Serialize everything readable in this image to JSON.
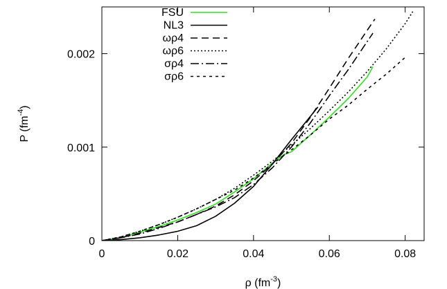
{
  "chart_data": {
    "type": "line",
    "xlabel": "ρ (fm",
    "xlabel_sup": "-3",
    "xlabel_tail": ")",
    "ylabel": "P (fm",
    "ylabel_sup": "-4",
    "ylabel_tail": ")",
    "xlim": [
      0,
      0.085
    ],
    "ylim": [
      0,
      0.0025
    ],
    "xticks": [
      {
        "value": 0,
        "label": "0"
      },
      {
        "value": 0.02,
        "label": "0.02"
      },
      {
        "value": 0.04,
        "label": "0.04"
      },
      {
        "value": 0.06,
        "label": "0.06"
      },
      {
        "value": 0.08,
        "label": "0.08"
      }
    ],
    "yticks": [
      {
        "value": 0,
        "label": "0"
      },
      {
        "value": 0.001,
        "label": "0.001"
      },
      {
        "value": 0.002,
        "label": "0.002"
      }
    ],
    "grid": false,
    "legend_position": "top-left",
    "series": [
      {
        "name": "FSU",
        "color": "#33dd22",
        "dash": "solid",
        "x": [
          0,
          0.005,
          0.01,
          0.015,
          0.02,
          0.025,
          0.03,
          0.035,
          0.04,
          0.045,
          0.048,
          0.05,
          0.055,
          0.06,
          0.065,
          0.07,
          0.0715
        ],
        "y": [
          0,
          3e-05,
          9e-05,
          0.00015,
          0.00022,
          0.0003,
          0.00039,
          0.00052,
          0.00066,
          0.00083,
          0.00092,
          0.00095,
          0.00113,
          0.00132,
          0.00152,
          0.00175,
          0.00186
        ]
      },
      {
        "name": "NL3",
        "color": "#000000",
        "dash": "solid",
        "x": [
          0,
          0.005,
          0.01,
          0.015,
          0.02,
          0.025,
          0.03,
          0.035,
          0.04,
          0.045,
          0.05,
          0.055,
          0.057
        ],
        "y": [
          0,
          1e-05,
          3e-05,
          6e-05,
          0.0001,
          0.00016,
          0.00026,
          0.0004,
          0.00058,
          0.00082,
          0.00108,
          0.00133,
          0.00143
        ]
      },
      {
        "name": "ωρ4",
        "color": "#000000",
        "dash": "10,6",
        "x": [
          0,
          0.005,
          0.01,
          0.015,
          0.02,
          0.025,
          0.03,
          0.035,
          0.04,
          0.045,
          0.05,
          0.055,
          0.06,
          0.065,
          0.07,
          0.072
        ],
        "y": [
          0,
          3e-05,
          8e-05,
          0.00014,
          0.0002,
          0.00028,
          0.00037,
          0.00049,
          0.00064,
          0.00082,
          0.00104,
          0.00132,
          0.00163,
          0.00195,
          0.00225,
          0.00237
        ]
      },
      {
        "name": "ωρ6",
        "color": "#000000",
        "dash": "2,3",
        "x": [
          0,
          0.005,
          0.01,
          0.015,
          0.02,
          0.025,
          0.03,
          0.035,
          0.04,
          0.045,
          0.05,
          0.055,
          0.06,
          0.065,
          0.07,
          0.075,
          0.08,
          0.082
        ],
        "y": [
          0,
          4e-05,
          0.0001,
          0.00017,
          0.00025,
          0.00034,
          0.00044,
          0.00056,
          0.0007,
          0.00085,
          0.00102,
          0.0012,
          0.00139,
          0.00159,
          0.00181,
          0.00205,
          0.00232,
          0.00245
        ]
      },
      {
        "name": "σρ4",
        "color": "#000000",
        "dash": "12,4,2,4",
        "x": [
          0,
          0.005,
          0.01,
          0.015,
          0.02,
          0.025,
          0.03,
          0.035,
          0.04,
          0.045,
          0.05,
          0.055,
          0.06,
          0.065,
          0.07,
          0.0715
        ],
        "y": [
          0,
          3e-05,
          7e-05,
          0.00013,
          0.0002,
          0.00028,
          0.00036,
          0.00046,
          0.0006,
          0.00078,
          0.001,
          0.00126,
          0.00155,
          0.00183,
          0.00213,
          0.00222
        ]
      },
      {
        "name": "σρ6",
        "color": "#000000",
        "dash": "4,5",
        "x": [
          0,
          0.005,
          0.01,
          0.015,
          0.02,
          0.025,
          0.03,
          0.035,
          0.04,
          0.045,
          0.05,
          0.055,
          0.06,
          0.065,
          0.07,
          0.075,
          0.08
        ],
        "y": [
          0,
          4e-05,
          0.0001,
          0.00017,
          0.00025,
          0.00034,
          0.00044,
          0.00054,
          0.00067,
          0.00082,
          0.00097,
          0.00113,
          0.0013,
          0.00145,
          0.00162,
          0.00178,
          0.00196
        ]
      }
    ]
  }
}
